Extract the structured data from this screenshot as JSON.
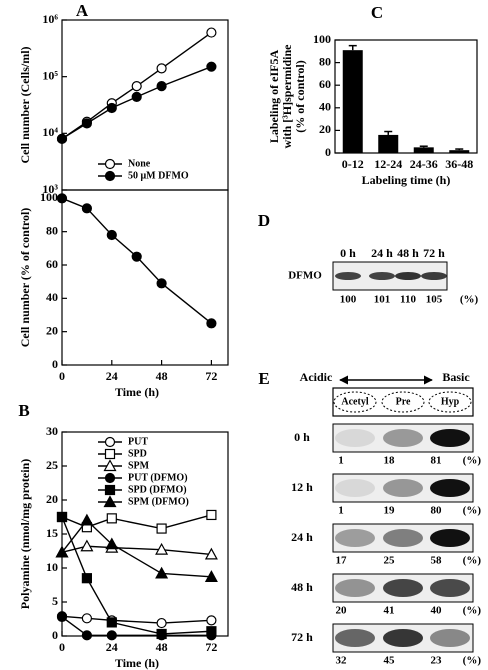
{
  "chart_data": [
    {
      "type": "line",
      "panel_label": "A",
      "y_label": "Cell number (Cells/ml)",
      "yscale": "log",
      "ylim": [
        1000,
        1000000
      ],
      "yticks": [
        {
          "value": 1000,
          "label": "10³"
        },
        {
          "value": 10000,
          "label": "10⁴"
        },
        {
          "value": 100000,
          "label": "10⁵"
        },
        {
          "value": 1000000,
          "label": "10⁶"
        }
      ],
      "xlim": [
        0,
        80
      ],
      "x": [
        0,
        12,
        24,
        36,
        48,
        72
      ],
      "legend": "lower right",
      "series": [
        {
          "name": "None",
          "color": "#000000",
          "marker": "circle",
          "filled": false,
          "values": [
            8000,
            16000,
            34000,
            68000,
            140000,
            600000
          ]
        },
        {
          "name": "50 μM DFMO",
          "color": "#000000",
          "marker": "circle",
          "filled": true,
          "values": [
            8000,
            15000,
            28000,
            44000,
            68000,
            150000
          ]
        }
      ]
    },
    {
      "type": "line",
      "y_label": "Cell number (% of control)",
      "x_label": "Time (h)",
      "ylim": [
        0,
        105
      ],
      "yticks": [
        0,
        20,
        40,
        60,
        80,
        100
      ],
      "xlim": [
        0,
        80
      ],
      "xticks": [
        0,
        24,
        48,
        72
      ],
      "x": [
        0,
        12,
        24,
        36,
        48,
        72
      ],
      "series": [
        {
          "color": "#000000",
          "marker": "circle",
          "filled": true,
          "values": [
            100,
            94,
            78,
            65,
            49,
            25
          ]
        }
      ]
    },
    {
      "type": "line",
      "panel_label": "B",
      "y_label": "Polyamine (nmol/mg protein)",
      "x_label": "Time (h)",
      "ylim": [
        0,
        30
      ],
      "yticks": [
        0,
        5,
        10,
        15,
        20,
        25,
        30
      ],
      "xlim": [
        0,
        80
      ],
      "xticks": [
        0,
        24,
        48,
        72
      ],
      "x": [
        0,
        12,
        24,
        48,
        72
      ],
      "legend": "upper right",
      "series": [
        {
          "name": "PUT",
          "color": "#000000",
          "marker": "circle",
          "filled": false,
          "values": [
            2.9,
            2.6,
            2.3,
            1.9,
            2.3
          ]
        },
        {
          "name": "SPD",
          "color": "#000000",
          "marker": "square",
          "filled": false,
          "values": [
            17.5,
            16,
            17.3,
            15.8,
            17.8
          ]
        },
        {
          "name": "SPM",
          "color": "#000000",
          "marker": "triangle",
          "filled": false,
          "values": [
            12.3,
            13.2,
            13,
            12.7,
            12
          ]
        },
        {
          "name": "PUT (DFMO)",
          "color": "#000000",
          "marker": "circle",
          "filled": true,
          "values": [
            2.8,
            0.1,
            0.1,
            0.1,
            0.1
          ]
        },
        {
          "name": "SPD (DFMO)",
          "color": "#000000",
          "marker": "square",
          "filled": true,
          "values": [
            17.5,
            8.5,
            2,
            0.3,
            0.7
          ]
        },
        {
          "name": "SPM (DFMO)",
          "color": "#000000",
          "marker": "triangle",
          "filled": true,
          "values": [
            12.3,
            17,
            13.5,
            9.2,
            8.7
          ]
        }
      ]
    },
    {
      "type": "bar",
      "panel_label": "C",
      "y_label": [
        "Labeling of eIF5A",
        "with [³H]spermidine",
        "(% of control)"
      ],
      "x_label": "Labeling time (h)",
      "ylim": [
        0,
        100
      ],
      "yticks": [
        0,
        20,
        40,
        60,
        80,
        100
      ],
      "color": "#000000",
      "categories": [
        "0-12",
        "12-24",
        "24-36",
        "36-48"
      ],
      "values": [
        91,
        16,
        5,
        2.5
      ],
      "errors": [
        4,
        3,
        1,
        1
      ]
    }
  ],
  "panel_d": {
    "panel_label": "D",
    "lanes": [
      "0 h",
      "24 h",
      "48 h",
      "72 h"
    ],
    "row_label": "DFMO",
    "values": [
      100,
      101,
      110,
      105
    ],
    "unit": "(%)"
  },
  "panel_e": {
    "panel_label": "E",
    "left": "Acidic",
    "right": "Basic",
    "spots": [
      "Acetyl",
      "Pre",
      "Hyp"
    ],
    "unit": "(%)",
    "rows": [
      {
        "label": "0 h",
        "values": [
          1,
          18,
          81
        ]
      },
      {
        "label": "12 h",
        "values": [
          1,
          19,
          80
        ]
      },
      {
        "label": "24 h",
        "values": [
          17,
          25,
          58
        ]
      },
      {
        "label": "48 h",
        "values": [
          20,
          41,
          40
        ]
      },
      {
        "label": "72 h",
        "values": [
          32,
          45,
          23
        ]
      }
    ]
  }
}
